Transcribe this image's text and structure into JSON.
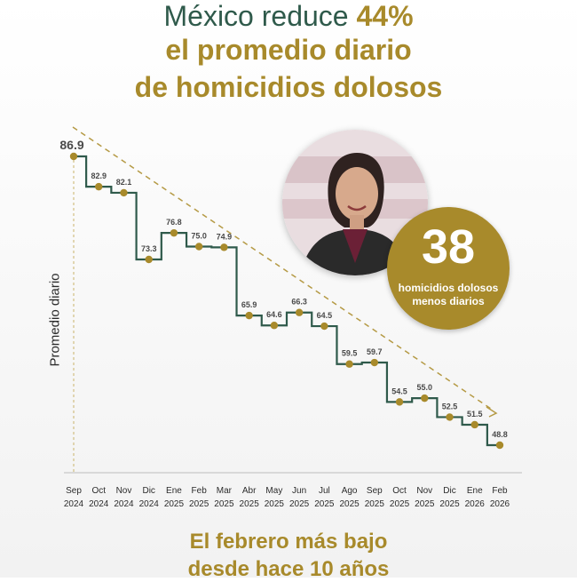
{
  "headline": {
    "part1": "México reduce ",
    "highlight": "44%",
    "line2": "el promedio diario",
    "line3": "de homicidios dolosos"
  },
  "badge": {
    "number": "38",
    "caption_line1": "homicidios dolosos",
    "caption_line2": "menos diarios"
  },
  "footer": {
    "line1": "El febrero más bajo",
    "line2": "desde hace 10 años"
  },
  "colors": {
    "green": "#2f5a4b",
    "gold": "#a88a2b",
    "line": "#2f5a4b",
    "marker": "#a88a2b"
  },
  "chart_data": {
    "type": "line",
    "ylabel": "Promedio diario",
    "x": [
      "Sep 2024",
      "Oct 2024",
      "Nov 2024",
      "Dic 2024",
      "Ene 2025",
      "Feb 2025",
      "Mar 2025",
      "Abr 2025",
      "May 2025",
      "Jun 2025",
      "Jul 2025",
      "Ago 2025",
      "Sep 2025",
      "Oct 2025",
      "Nov 2025",
      "Dic 2025",
      "Ene 2026",
      "Feb 2026"
    ],
    "x_month": [
      "Sep",
      "Oct",
      "Nov",
      "Dic",
      "Ene",
      "Feb",
      "Mar",
      "Abr",
      "May",
      "Jun",
      "Jul",
      "Ago",
      "Sep",
      "Oct",
      "Nov",
      "Dic",
      "Ene",
      "Feb"
    ],
    "x_year": [
      "2024",
      "2024",
      "2024",
      "2024",
      "2025",
      "2025",
      "2025",
      "2025",
      "2025",
      "2025",
      "2025",
      "2025",
      "2025",
      "2025",
      "2025",
      "2025",
      "2026",
      "2026"
    ],
    "values": [
      86.9,
      82.9,
      82.1,
      73.3,
      76.8,
      75.0,
      74.9,
      65.9,
      64.6,
      66.3,
      64.5,
      59.5,
      59.7,
      54.5,
      55.0,
      52.5,
      51.5,
      48.8
    ],
    "value_labels": [
      "86.9",
      "82.9",
      "82.1",
      "73.3",
      "76.8",
      "75.0",
      "74.9",
      "65.9",
      "64.6",
      "66.3",
      "64.5",
      "59.5",
      "59.7",
      "54.5",
      "55.0",
      "52.5",
      "51.5",
      "48.8"
    ],
    "style": "step",
    "trend_line": "dashed",
    "grid": false,
    "ylim": [
      45,
      88
    ]
  }
}
